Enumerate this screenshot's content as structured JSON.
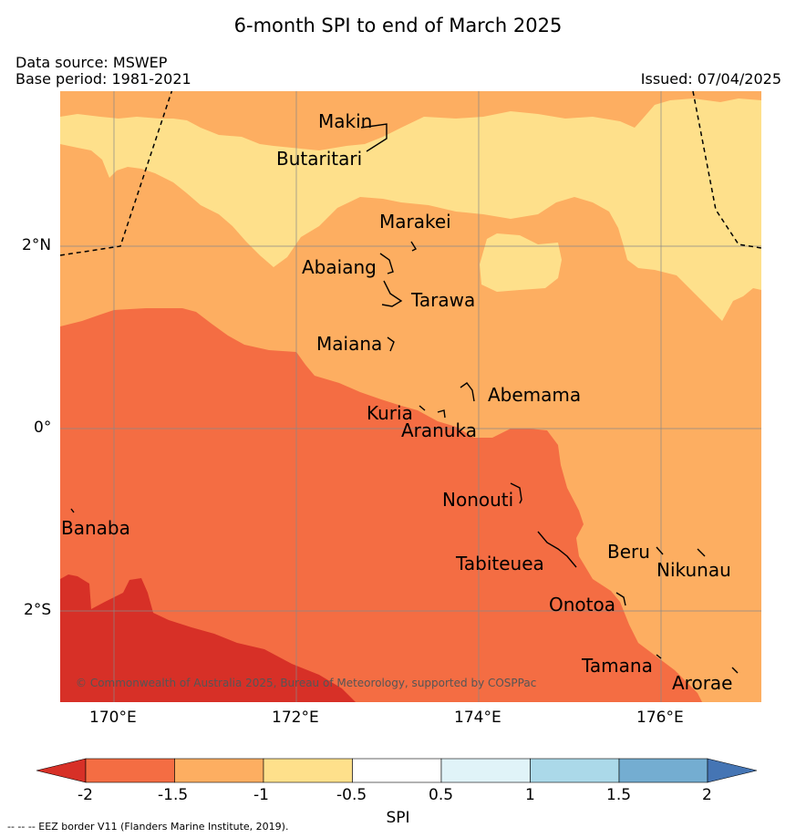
{
  "title": "6-month SPI to end of March 2025",
  "data_source": "Data source: MSWEP",
  "base_period": "Base period: 1981-2021",
  "issued": "Issued: 07/04/2025",
  "copyright": "© Commonwealth of Australia 2025, Bureau of Meteorology, supported by COSPPac",
  "lat_labels": [
    "2°N",
    "0°",
    "2°S"
  ],
  "lon_labels": [
    "170°E",
    "172°E",
    "174°E",
    "176°E"
  ],
  "places": [
    "Makin",
    "Butaritari",
    "Marakei",
    "Abaiang",
    "Tarawa",
    "Maiana",
    "Abemama",
    "Kuria",
    "Aranuka",
    "Nonouti",
    "Banaba",
    "Tabiteuea",
    "Beru",
    "Nikunau",
    "Onotoa",
    "Tamana",
    "Arorae"
  ],
  "colorbar": {
    "label": "SPI",
    "ticks": [
      "-2",
      "-1.5",
      "-1",
      "-0.5",
      "0.5",
      "1",
      "1.5",
      "2"
    ],
    "colors": {
      "below_-2": "#d73027",
      "-2_-1.5": "#f46d43",
      "-1.5_-1": "#fdae61",
      "-1_-0.5": "#fee08b",
      "-0.5_0.5": "#ffffff",
      "0.5_1": "#e0f3f8",
      "1_1.5": "#abd9e9",
      "1.5_2": "#74add1",
      "above_2": "#4575b4"
    }
  },
  "eez_legend": "-- -- -- EEZ border V11 (Flanders Marine Institute, 2019)."
}
